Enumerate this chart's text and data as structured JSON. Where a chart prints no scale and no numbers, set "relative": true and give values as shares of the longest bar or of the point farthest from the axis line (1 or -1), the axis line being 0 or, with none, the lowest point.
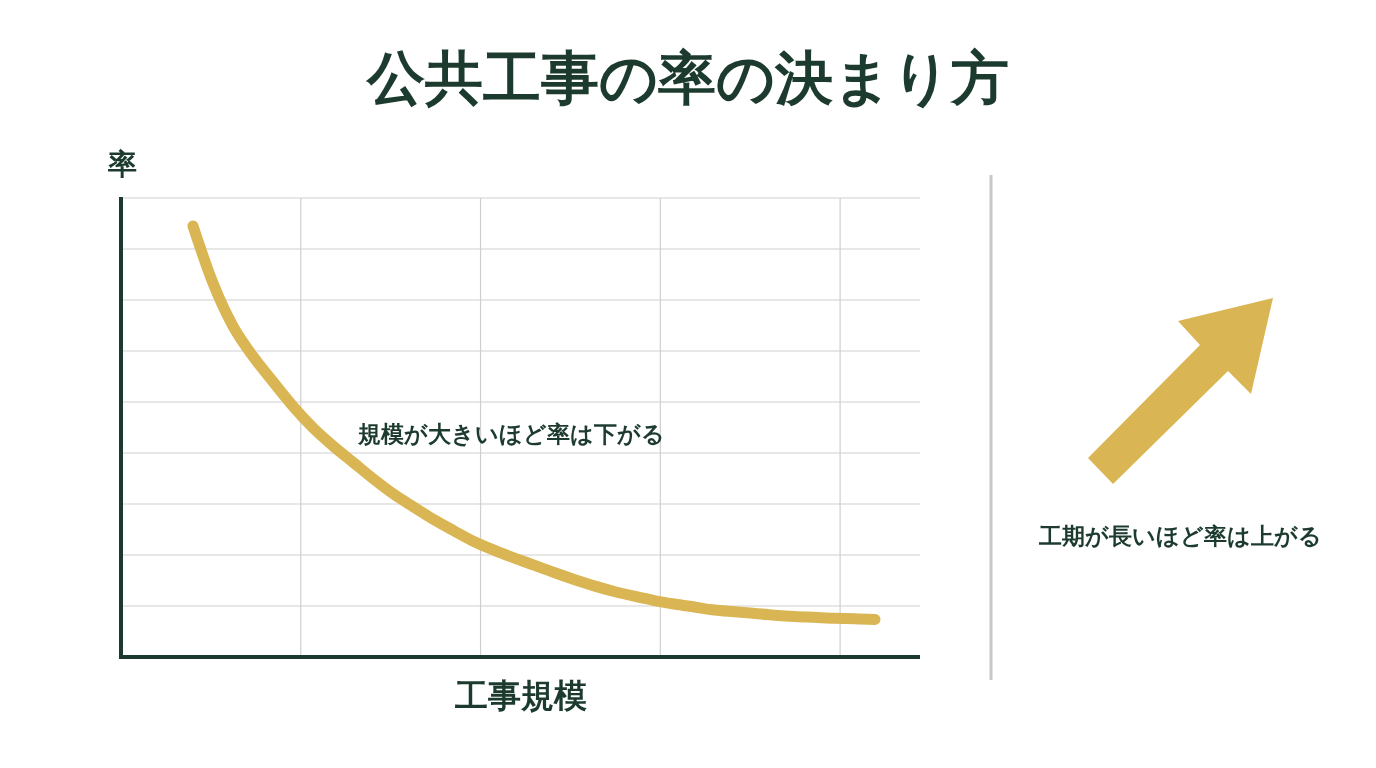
{
  "chart_data": {
    "type": "line",
    "title": "公共工事の率の決まり方",
    "xlabel": "工事規模",
    "ylabel": "率",
    "categories": [
      null,
      null,
      null,
      null,
      null,
      null,
      null,
      null,
      null,
      null,
      null,
      null,
      null,
      null,
      null,
      null,
      null,
      null,
      null,
      null,
      null,
      null,
      null,
      null,
      null,
      null,
      null,
      null,
      null,
      null,
      null,
      null,
      null,
      null,
      null
    ],
    "values": [
      1.0,
      0.867,
      0.767,
      0.697,
      0.638,
      0.581,
      0.531,
      0.489,
      0.451,
      0.413,
      0.378,
      0.348,
      0.319,
      0.293,
      0.268,
      0.248,
      0.23,
      0.213,
      0.196,
      0.18,
      0.165,
      0.152,
      0.141,
      0.131,
      0.123,
      0.116,
      0.109,
      0.105,
      0.101,
      0.097,
      0.094,
      0.092,
      0.09,
      0.089,
      0.087
    ],
    "color": "#d9b653",
    "relative": true,
    "grid": true,
    "annotations": [
      "規模が大きいほど率は下がる",
      "工期が長いほど率は上がる"
    ]
  }
}
